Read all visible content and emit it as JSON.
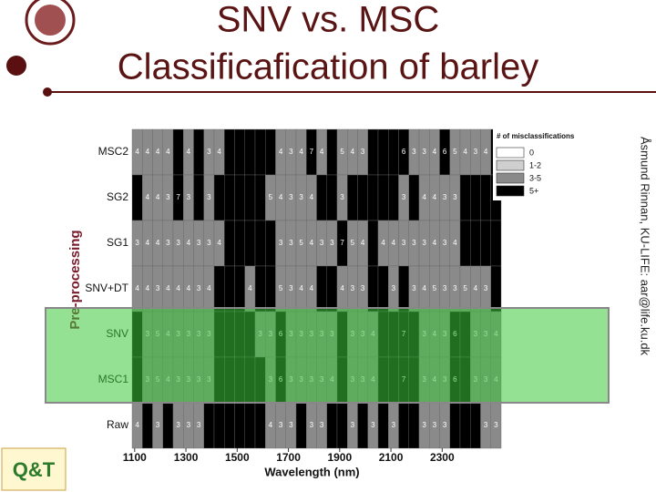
{
  "title_lines": [
    "SNV vs. MSC",
    "Classificafication of barley"
  ],
  "credit": "Åsmund Rinnan, KU-LIFE: aar@life.ku.dk",
  "logo_text": "Q&T",
  "chart_data": {
    "type": "heatmap",
    "xlabel": "Wavelength (nm)",
    "ylabel": "Pre-processing",
    "xlim": [
      1090,
      2530
    ],
    "xticks": [
      1100,
      1300,
      1500,
      1700,
      1900,
      2100,
      2300
    ],
    "x": [
      1110,
      1150,
      1190,
      1230,
      1270,
      1310,
      1350,
      1390,
      1430,
      1470,
      1510,
      1550,
      1590,
      1630,
      1670,
      1710,
      1750,
      1790,
      1830,
      1870,
      1910,
      1950,
      1990,
      2030,
      2070,
      2110,
      2150,
      2190,
      2230,
      2270,
      2310,
      2350,
      2390,
      2430,
      2470,
      2510
    ],
    "legend_title": "# of misclassifications",
    "legend": [
      {
        "label": "0",
        "color": "#ffffff"
      },
      {
        "label": "1-2",
        "color": "#cfcfcf"
      },
      {
        "label": "3-5",
        "color": "#8a8a8a"
      },
      {
        "label": "5+",
        "color": "#000000"
      }
    ],
    "series": [
      {
        "name": "MSC2",
        "values": [
          4,
          4,
          4,
          4,
          null,
          4,
          null,
          3,
          4,
          null,
          null,
          null,
          null,
          null,
          4,
          3,
          4,
          7,
          4,
          null,
          5,
          4,
          3,
          null,
          null,
          null,
          6,
          3,
          3,
          4,
          6,
          5,
          4,
          3,
          4,
          null
        ]
      },
      {
        "name": "SG2",
        "values": [
          null,
          4,
          4,
          3,
          7,
          3,
          null,
          3,
          null,
          null,
          null,
          null,
          null,
          5,
          4,
          3,
          3,
          4,
          null,
          null,
          3,
          null,
          null,
          null,
          null,
          null,
          3,
          null,
          4,
          4,
          3,
          3,
          null,
          null,
          null,
          null
        ]
      },
      {
        "name": "SG1",
        "values": [
          3,
          4,
          4,
          3,
          3,
          4,
          3,
          3,
          4,
          null,
          null,
          null,
          null,
          null,
          3,
          3,
          5,
          4,
          3,
          3,
          7,
          5,
          4,
          null,
          4,
          4,
          3,
          3,
          3,
          4,
          3,
          4,
          null,
          null,
          null,
          null
        ]
      },
      {
        "name": "SNV+DT",
        "values": [
          4,
          4,
          3,
          4,
          4,
          4,
          3,
          4,
          null,
          null,
          null,
          4,
          null,
          null,
          5,
          3,
          4,
          4,
          null,
          null,
          4,
          3,
          3,
          null,
          null,
          3,
          null,
          3,
          4,
          5,
          3,
          3,
          5,
          4,
          3,
          null
        ]
      },
      {
        "name": "SNV",
        "values": [
          null,
          3,
          5,
          4,
          3,
          3,
          3,
          3,
          null,
          null,
          null,
          null,
          3,
          3,
          6,
          3,
          3,
          3,
          3,
          3,
          null,
          3,
          3,
          4,
          null,
          null,
          7,
          null,
          3,
          4,
          3,
          6,
          null,
          3,
          3,
          4
        ]
      },
      {
        "name": "MSC1",
        "values": [
          null,
          3,
          5,
          4,
          3,
          3,
          3,
          3,
          null,
          null,
          null,
          null,
          null,
          3,
          6,
          3,
          3,
          3,
          3,
          4,
          null,
          3,
          3,
          4,
          null,
          null,
          7,
          null,
          3,
          4,
          3,
          6,
          null,
          3,
          3,
          4
        ]
      },
      {
        "name": "Raw",
        "values": [
          4,
          null,
          3,
          null,
          3,
          3,
          3,
          null,
          null,
          null,
          null,
          null,
          null,
          4,
          3,
          3,
          null,
          3,
          3,
          null,
          null,
          3,
          null,
          3,
          null,
          3,
          null,
          null,
          3,
          3,
          3,
          null,
          null,
          null,
          3,
          3
        ]
      }
    ]
  }
}
